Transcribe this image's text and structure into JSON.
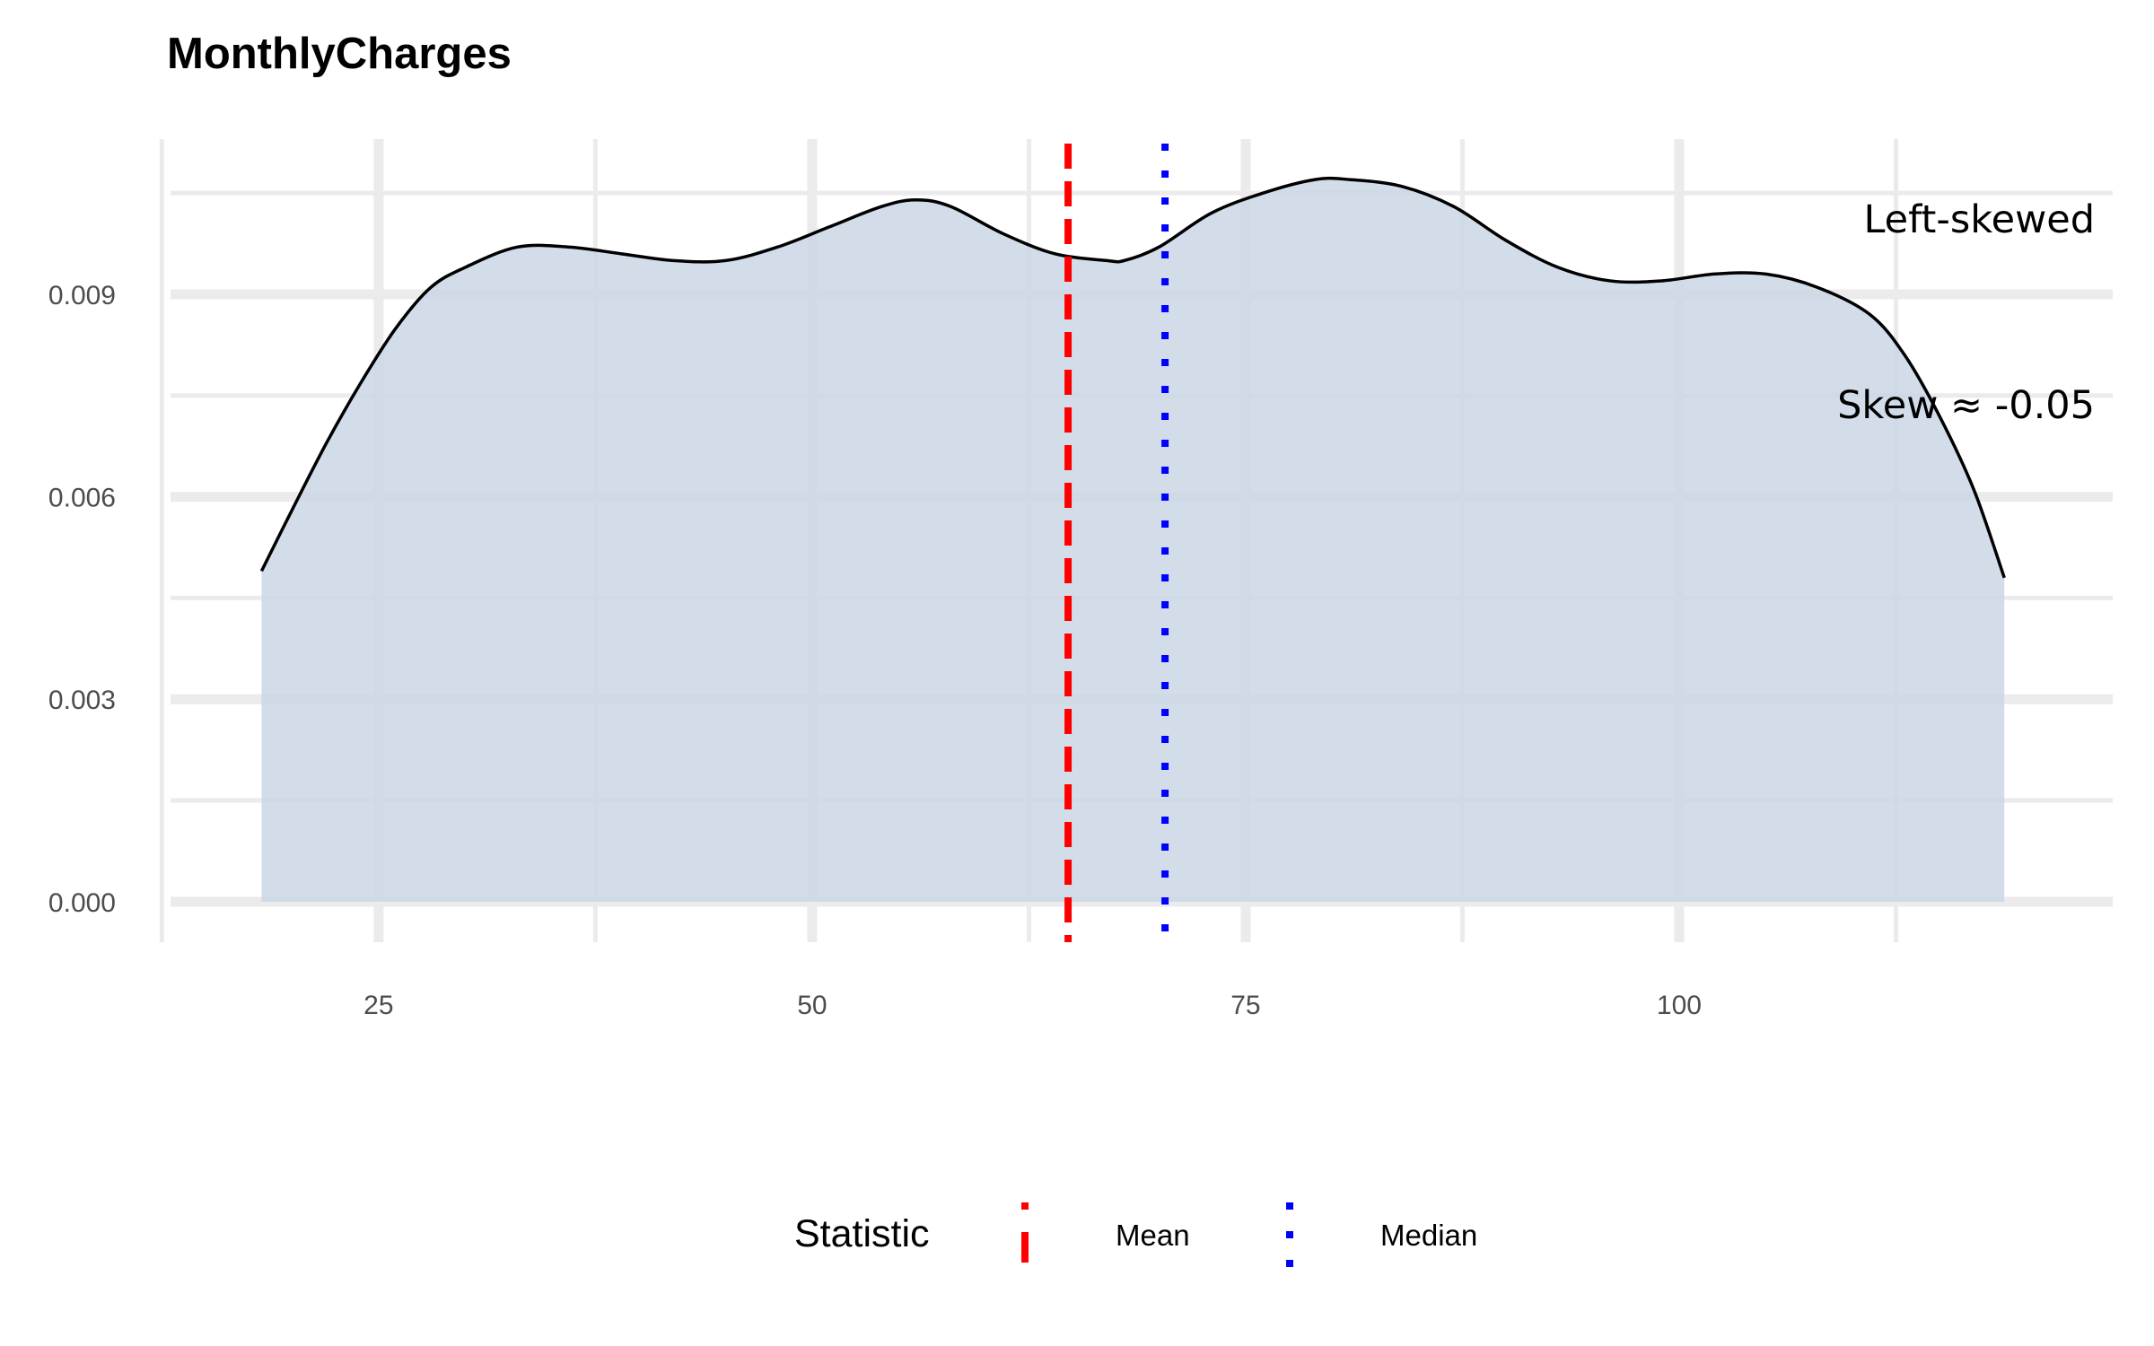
{
  "chart_data": {
    "type": "area",
    "title": "MonthlyCharges",
    "xlabel": "",
    "ylabel": "",
    "xlim": [
      13,
      125
    ],
    "ylim": [
      -0.0006,
      0.0113
    ],
    "x_ticks": [
      25,
      50,
      75,
      100
    ],
    "x_tick_labels": [
      "25",
      "50",
      "75",
      "100"
    ],
    "x_minor_ticks": [
      12.5,
      37.5,
      62.5,
      87.5,
      112.5
    ],
    "y_ticks": [
      0.0,
      0.003,
      0.006,
      0.009
    ],
    "y_tick_labels": [
      "0.000",
      "0.003",
      "0.006",
      "0.009"
    ],
    "y_minor_ticks": [
      0.0015,
      0.0045,
      0.0075,
      0.0105
    ],
    "grid": true,
    "density": {
      "x": [
        18.25,
        20,
        22,
        24,
        26,
        28,
        30,
        33,
        36,
        39,
        42,
        45,
        48,
        51,
        54,
        56,
        58,
        61,
        64,
        67,
        68,
        70,
        73,
        76,
        79,
        81,
        84,
        87,
        90,
        93,
        96,
        99,
        102,
        105,
        108,
        111,
        113,
        115,
        117,
        118.75
      ],
      "y": [
        0.0049,
        0.0058,
        0.0068,
        0.0077,
        0.0085,
        0.0091,
        0.0094,
        0.0097,
        0.0097,
        0.0096,
        0.0095,
        0.0095,
        0.0097,
        0.01,
        0.0103,
        0.0104,
        0.0103,
        0.0099,
        0.0096,
        0.0095,
        0.0095,
        0.0097,
        0.0102,
        0.0105,
        0.0107,
        0.0107,
        0.0106,
        0.0103,
        0.0098,
        0.0094,
        0.0092,
        0.0092,
        0.0093,
        0.0093,
        0.0091,
        0.0087,
        0.0081,
        0.0072,
        0.0061,
        0.0048
      ]
    },
    "mean": 64.76,
    "median": 70.35,
    "fill_color": "#c9d6e5",
    "line_color": "#000000",
    "mean_color": "#ff0000",
    "median_color": "#0000ff",
    "legend": {
      "title": "Statistic",
      "position": "bottom",
      "entries": [
        {
          "label": "Mean",
          "color": "#ff0000",
          "linetype": "dashed"
        },
        {
          "label": "Median",
          "color": "#0000ff",
          "linetype": "dotted"
        }
      ]
    },
    "annotations": [
      "Left-skewed",
      "Skew ≈ -0.05"
    ]
  }
}
